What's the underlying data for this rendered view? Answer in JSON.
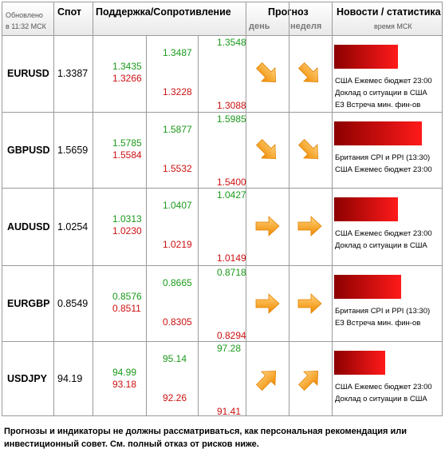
{
  "header": {
    "updated_line1": "Обновлено",
    "updated_line2": "в 11:32 МСК",
    "spot": "Спот",
    "support_resistance": "Поддержка/Сопротивление",
    "forecast": "Прогноз",
    "day": "день",
    "week": "неделя",
    "news": "Новости / статистика",
    "news_time": "время МСК"
  },
  "colors": {
    "support": "#1a9a1a",
    "resistance": "#cc1111",
    "arrow": "#f5a623",
    "bar_dark": "#8c0000",
    "bar_light": "#ff1a1a"
  },
  "rows": [
    {
      "pair": "EURUSD",
      "spot": "1.3387",
      "c1_green": "1.3435",
      "c1_red": "1.3266",
      "c2_green": "1.3487",
      "c2_red": "1.3228",
      "c3_green": "1.3548",
      "c3_red": "1.3088",
      "day_arrow": "arrow-down-right-icon",
      "week_arrow": "arrow-down-right-icon",
      "news": [
        "США Ежемес бюджет 23:00",
        "Доклад о ситуации в США",
        "ЕЗ Встреча мин. фин-ов"
      ]
    },
    {
      "pair": "GBPUSD",
      "spot": "1.5659",
      "c1_green": "1.5785",
      "c1_red": "1.5584",
      "c2_green": "1.5877",
      "c2_red": "1.5532",
      "c3_green": "1.5985",
      "c3_red": "1.5400",
      "day_arrow": "arrow-down-right-icon",
      "week_arrow": "arrow-down-right-icon",
      "news": [
        "Британия CPI и PPI (13:30)",
        "США Ежемес бюджет 23:00"
      ]
    },
    {
      "pair": "AUDUSD",
      "spot": "1.0254",
      "c1_green": "1.0313",
      "c1_red": "1.0230",
      "c2_green": "1.0407",
      "c2_red": "1.0219",
      "c3_green": "1.0427",
      "c3_red": "1.0149",
      "day_arrow": "arrow-right-icon",
      "week_arrow": "arrow-right-icon",
      "news": [
        "США Ежемес бюджет 23:00",
        "Доклад о ситуации в США"
      ]
    },
    {
      "pair": "EURGBP",
      "spot": "0.8549",
      "c1_green": "0.8576",
      "c1_red": "0.8511",
      "c2_green": "0.8665",
      "c2_red": "0.8305",
      "c3_green": "0.8718",
      "c3_red": "0.8294",
      "day_arrow": "arrow-right-icon",
      "week_arrow": "arrow-right-icon",
      "news": [
        "Британия CPI и PPI (13:30)",
        "ЕЗ Встреча мин. фин-ов"
      ]
    },
    {
      "pair": "USDJPY",
      "spot": "94.19",
      "c1_green": "94.99",
      "c1_red": "93.18",
      "c2_green": "95.14",
      "c2_red": "92.26",
      "c3_green": "97.28",
      "c3_red": "91.41",
      "day_arrow": "arrow-up-right-icon",
      "week_arrow": "arrow-up-right-icon",
      "news": [
        "США Ежемес бюджет 23:00",
        "Доклад о ситуации в США"
      ]
    }
  ],
  "disclaimer": "Прогнозы и индикаторы не должны рассматриваться, как персональная рекомендация или инвестиционный совет. См. полный отказ от рисков ниже."
}
